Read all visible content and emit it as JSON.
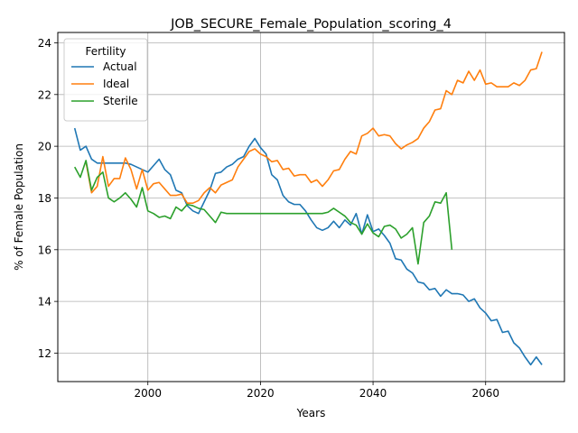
{
  "chart_data": {
    "type": "line",
    "title": "JOB_SECURE_Female_Population_scoring_4",
    "xlabel": "Years",
    "ylabel": "% of Female Population",
    "xlim": [
      1984,
      2074
    ],
    "ylim": [
      10.9,
      24.4
    ],
    "x_ticks": [
      2000,
      2020,
      2040,
      2060
    ],
    "y_ticks": [
      12,
      14,
      16,
      18,
      20,
      22,
      24
    ],
    "grid": true,
    "legend": {
      "title": "Fertility",
      "placement": "top-left"
    },
    "series": [
      {
        "name": "Actual",
        "color": "#1f77b4",
        "x": [
          1987,
          1988,
          1989,
          1990,
          1991,
          1992,
          1993,
          1994,
          1995,
          1996,
          1997,
          1998,
          1999,
          2000,
          2001,
          2002,
          2003,
          2004,
          2005,
          2006,
          2007,
          2008,
          2009,
          2010,
          2011,
          2012,
          2013,
          2014,
          2015,
          2016,
          2017,
          2018,
          2019,
          2020,
          2021,
          2022,
          2023,
          2024,
          2025,
          2026,
          2027,
          2028,
          2029,
          2030,
          2031,
          2032,
          2033,
          2034,
          2035,
          2036,
          2037,
          2038,
          2039,
          2040,
          2041,
          2042,
          2043,
          2044,
          2045,
          2046,
          2047,
          2048,
          2049,
          2050,
          2051,
          2052,
          2053,
          2054,
          2055,
          2056,
          2057,
          2058,
          2059,
          2060,
          2061,
          2062,
          2063,
          2064,
          2065,
          2066,
          2067,
          2068,
          2069,
          2070
        ],
        "values": [
          20.7,
          19.85,
          20.0,
          19.5,
          19.35,
          19.35,
          19.35,
          19.35,
          19.35,
          19.35,
          19.3,
          19.2,
          19.1,
          19.0,
          19.25,
          19.5,
          19.1,
          18.9,
          18.3,
          18.2,
          17.7,
          17.5,
          17.4,
          17.85,
          18.3,
          18.95,
          19.0,
          19.2,
          19.3,
          19.5,
          19.6,
          20.0,
          20.3,
          19.95,
          19.7,
          18.9,
          18.7,
          18.1,
          17.85,
          17.75,
          17.75,
          17.5,
          17.15,
          16.85,
          16.75,
          16.85,
          17.1,
          16.85,
          17.15,
          16.95,
          17.4,
          16.6,
          17.35,
          16.7,
          16.8,
          16.55,
          16.25,
          15.65,
          15.6,
          15.25,
          15.1,
          14.75,
          14.7,
          14.45,
          14.5,
          14.2,
          14.45,
          14.3,
          14.3,
          14.25,
          14.0,
          14.1,
          13.75,
          13.55,
          13.25,
          13.3,
          12.8,
          12.85,
          12.4,
          12.2,
          11.85,
          11.55,
          11.85,
          11.55
        ]
      },
      {
        "name": "Ideal",
        "color": "#ff7f0e",
        "x": [
          1989,
          1990,
          1991,
          1992,
          1993,
          1994,
          1995,
          1996,
          1997,
          1998,
          1999,
          2000,
          2001,
          2002,
          2003,
          2004,
          2005,
          2006,
          2007,
          2008,
          2009,
          2010,
          2011,
          2012,
          2013,
          2014,
          2015,
          2016,
          2017,
          2018,
          2019,
          2020,
          2021,
          2022,
          2023,
          2024,
          2025,
          2026,
          2027,
          2028,
          2029,
          2030,
          2031,
          2032,
          2033,
          2034,
          2035,
          2036,
          2037,
          2038,
          2039,
          2040,
          2041,
          2042,
          2043,
          2044,
          2045,
          2046,
          2047,
          2048,
          2049,
          2050,
          2051,
          2052,
          2053,
          2054,
          2055,
          2056,
          2057,
          2058,
          2059,
          2060,
          2061,
          2062,
          2063,
          2064,
          2065,
          2066,
          2067,
          2068,
          2069,
          2070
        ],
        "values": [
          19.4,
          18.2,
          18.45,
          19.6,
          18.45,
          18.75,
          18.75,
          19.55,
          19.1,
          18.35,
          19.1,
          18.3,
          18.55,
          18.6,
          18.35,
          18.1,
          18.1,
          18.15,
          17.8,
          17.8,
          17.9,
          18.2,
          18.4,
          18.2,
          18.5,
          18.6,
          18.7,
          19.2,
          19.5,
          19.8,
          19.9,
          19.7,
          19.6,
          19.4,
          19.45,
          19.1,
          19.15,
          18.85,
          18.9,
          18.9,
          18.6,
          18.7,
          18.45,
          18.7,
          19.05,
          19.1,
          19.5,
          19.8,
          19.7,
          20.4,
          20.5,
          20.7,
          20.4,
          20.45,
          20.4,
          20.1,
          19.9,
          20.05,
          20.15,
          20.3,
          20.7,
          20.95,
          21.4,
          21.45,
          22.15,
          22.0,
          22.55,
          22.45,
          22.9,
          22.55,
          22.95,
          22.4,
          22.45,
          22.3,
          22.3,
          22.3,
          22.45,
          22.35,
          22.55,
          22.95,
          23.0,
          23.65
        ]
      },
      {
        "name": "Sterile",
        "color": "#2ca02c",
        "x": [
          1987,
          1988,
          1989,
          1990,
          1991,
          1992,
          1993,
          1994,
          1995,
          1996,
          1997,
          1998,
          1999,
          2000,
          2001,
          2002,
          2003,
          2004,
          2005,
          2006,
          2007,
          2008,
          2009,
          2010,
          2011,
          2012,
          2013,
          2014,
          2015,
          2016,
          2017,
          2018,
          2019,
          2020,
          2021,
          2022,
          2023,
          2024,
          2025,
          2026,
          2027,
          2028,
          2029,
          2030,
          2031,
          2032,
          2033,
          2034,
          2035,
          2036,
          2037,
          2038,
          2039,
          2040,
          2041,
          2042,
          2043,
          2044,
          2045,
          2046,
          2047,
          2048,
          2049,
          2050,
          2051,
          2052,
          2053,
          2054
        ],
        "values": [
          19.2,
          18.8,
          19.45,
          18.3,
          18.8,
          19.0,
          18.0,
          17.85,
          18.0,
          18.2,
          17.95,
          17.65,
          18.4,
          17.5,
          17.4,
          17.25,
          17.3,
          17.2,
          17.65,
          17.5,
          17.75,
          17.7,
          17.6,
          17.55,
          17.3,
          17.05,
          17.45,
          17.4,
          17.4,
          17.4,
          17.4,
          17.4,
          17.4,
          17.4,
          17.4,
          17.4,
          17.4,
          17.4,
          17.4,
          17.4,
          17.4,
          17.4,
          17.4,
          17.4,
          17.4,
          17.45,
          17.6,
          17.45,
          17.3,
          17.05,
          16.95,
          16.6,
          17.0,
          16.65,
          16.5,
          16.9,
          16.95,
          16.8,
          16.45,
          16.6,
          16.85,
          15.45,
          17.05,
          17.3,
          17.85,
          17.8,
          18.2,
          16.0
        ]
      }
    ]
  }
}
